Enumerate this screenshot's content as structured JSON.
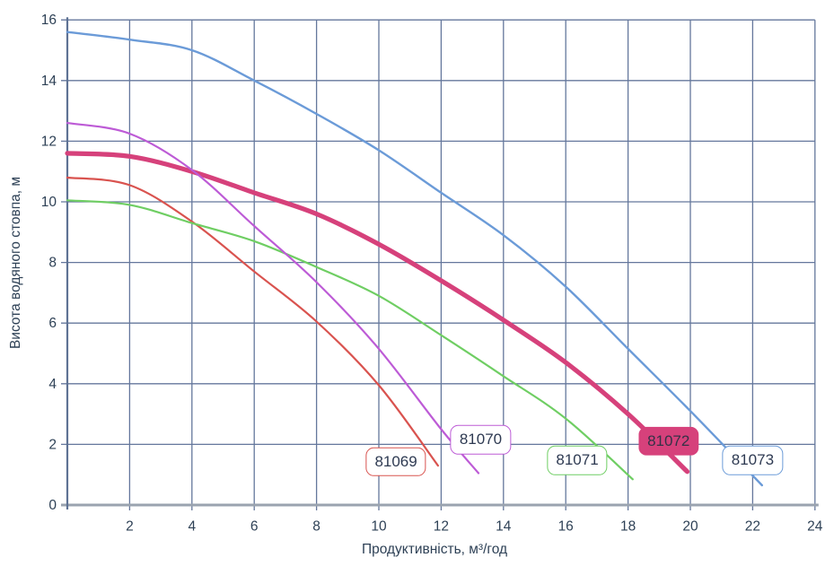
{
  "chart_data": {
    "type": "line",
    "title": "",
    "xlabel": "Продуктивність, м³/год",
    "ylabel": "Висота водяного стовпа, м",
    "xlim": [
      0,
      24
    ],
    "ylim": [
      0,
      16
    ],
    "x_ticks": [
      2,
      4,
      6,
      8,
      10,
      12,
      14,
      16,
      18,
      20,
      22,
      24
    ],
    "y_ticks": [
      0,
      2,
      4,
      6,
      8,
      10,
      12,
      14,
      16
    ],
    "grid": true,
    "legend_position": "labels-on-curves",
    "series": [
      {
        "name": "81069",
        "color": "#d9534f",
        "line_width": 2.2,
        "label_style": "outline",
        "label_pos": [
          10.55,
          1.42
        ],
        "points": [
          [
            0,
            10.8
          ],
          [
            2,
            10.55
          ],
          [
            4,
            9.35
          ],
          [
            6,
            7.7
          ],
          [
            8,
            6.05
          ],
          [
            10,
            3.95
          ],
          [
            11.9,
            1.3
          ]
        ]
      },
      {
        "name": "81071",
        "color": "#6fce63",
        "line_width": 2.2,
        "label_style": "outline",
        "label_pos": [
          16.37,
          1.47
        ],
        "points": [
          [
            0,
            10.05
          ],
          [
            2,
            9.9
          ],
          [
            4,
            9.3
          ],
          [
            6,
            8.7
          ],
          [
            8,
            7.85
          ],
          [
            10,
            6.9
          ],
          [
            12,
            5.6
          ],
          [
            14,
            4.25
          ],
          [
            16,
            2.85
          ],
          [
            18.15,
            0.85
          ]
        ]
      },
      {
        "name": "81072",
        "color": "#d6417b",
        "line_width": 5.2,
        "label_style": "filled",
        "label_pos": [
          19.3,
          2.1
        ],
        "points": [
          [
            0,
            11.6
          ],
          [
            2,
            11.5
          ],
          [
            4,
            11.0
          ],
          [
            6,
            10.3
          ],
          [
            8,
            9.6
          ],
          [
            10,
            8.6
          ],
          [
            12,
            7.4
          ],
          [
            14,
            6.1
          ],
          [
            16,
            4.7
          ],
          [
            18,
            3.0
          ],
          [
            19.9,
            1.1
          ]
        ]
      },
      {
        "name": "81070",
        "color": "#bd5bd6",
        "line_width": 2.2,
        "label_style": "outline",
        "label_pos": [
          13.27,
          2.15
        ],
        "points": [
          [
            0,
            12.6
          ],
          [
            2,
            12.25
          ],
          [
            4,
            11.05
          ],
          [
            6,
            9.2
          ],
          [
            8,
            7.35
          ],
          [
            10,
            5.15
          ],
          [
            12,
            2.5
          ],
          [
            13.2,
            1.05
          ]
        ]
      },
      {
        "name": "81073",
        "color": "#6b9bd8",
        "line_width": 2.4,
        "label_style": "outline",
        "label_pos": [
          22.0,
          1.47
        ],
        "points": [
          [
            0,
            15.6
          ],
          [
            2,
            15.35
          ],
          [
            4,
            15.0
          ],
          [
            6,
            14.0
          ],
          [
            8,
            12.9
          ],
          [
            10,
            11.7
          ],
          [
            12,
            10.3
          ],
          [
            14,
            8.9
          ],
          [
            16,
            7.2
          ],
          [
            18,
            5.15
          ],
          [
            20,
            3.1
          ],
          [
            22.3,
            0.65
          ]
        ]
      }
    ]
  },
  "style": {
    "grid_color": "#64779c",
    "x_axis_color": "#9aa3af",
    "y_axis_color": "#5e7294",
    "tick_text_color": "#2e4156",
    "background": "#ffffff"
  }
}
